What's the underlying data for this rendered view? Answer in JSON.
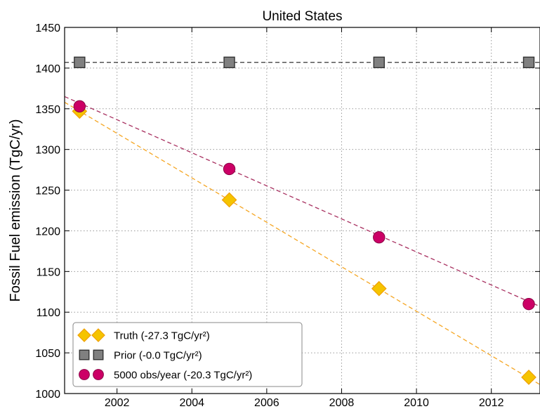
{
  "chart_data": {
    "type": "scatter",
    "title": "United States",
    "xlabel": "",
    "ylabel": "Fossil Fuel emission (TgC/yr)",
    "xlim": [
      2000.6,
      2013.3
    ],
    "ylim": [
      1000,
      1450
    ],
    "xticks": [
      "2002",
      "2004",
      "2006",
      "2008",
      "2010",
      "2012"
    ],
    "yticks": [
      "1000",
      "1050",
      "1100",
      "1150",
      "1200",
      "1250",
      "1300",
      "1350",
      "1400",
      "1450"
    ],
    "grid": true,
    "legend_position": "bottom-left",
    "series": [
      {
        "name": "Truth (-27.3 TgC/yr²)",
        "marker": "diamond",
        "color": "#f5c400",
        "edge_color": "#f0a000",
        "line_color": "#f5a623",
        "x": [
          2001,
          2005,
          2009,
          2013
        ],
        "y": [
          1347,
          1238,
          1129,
          1020
        ],
        "trend": [
          [
            2000.6,
            1358
          ],
          [
            2013.3,
            1011
          ]
        ]
      },
      {
        "name": "Prior (-0.0 TgC/yr²)",
        "marker": "square",
        "color": "#808080",
        "edge_color": "#333333",
        "line_color": "#333333",
        "x": [
          2001,
          2005,
          2009,
          2013
        ],
        "y": [
          1407,
          1407,
          1407,
          1407
        ],
        "trend": [
          [
            2000.6,
            1407
          ],
          [
            2013.3,
            1407
          ]
        ]
      },
      {
        "name": "5000 obs/year (-20.3 TgC/yr²)",
        "marker": "circle",
        "color": "#cc0066",
        "edge_color": "#8a0045",
        "line_color": "#a83060",
        "x": [
          2001,
          2005,
          2009,
          2013
        ],
        "y": [
          1353,
          1276,
          1192,
          1110
        ],
        "trend": [
          [
            2000.6,
            1365
          ],
          [
            2013.3,
            1107
          ]
        ]
      }
    ]
  }
}
